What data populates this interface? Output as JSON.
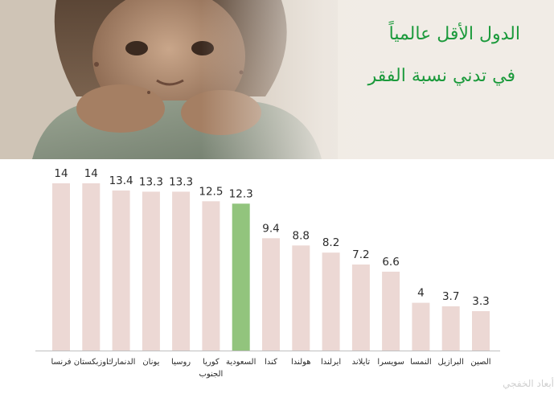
{
  "header": {
    "title_line1": "الدول الأقل عالمياً",
    "title_line2": "في تدني نسبة الفقر"
  },
  "watermark": "أبعاد الخفجي",
  "colors": {
    "bar_default": "#ecd8d4",
    "bar_highlight": "#92c47d",
    "title": "#1c9a3c"
  },
  "chart_data": {
    "type": "bar",
    "title": "الدول الأقل عالمياً في تدني نسبة الفقر",
    "xlabel": "",
    "ylabel": "",
    "categories": [
      "فرنسا",
      "اوزبكستان",
      "الدنمارك",
      "يونان",
      "روسيا",
      "كوريا الجنوب",
      "السعودية",
      "كندا",
      "هولندا",
      "ايرلندا",
      "تايلاند",
      "سويسرا",
      "النمسا",
      "البرازيل",
      "الصين"
    ],
    "values": [
      14,
      14,
      13.4,
      13.3,
      13.3,
      12.5,
      12.3,
      9.4,
      8.8,
      8.2,
      7.2,
      6.6,
      4,
      3.7,
      3.3
    ],
    "value_labels": [
      "14",
      "14",
      "13.4",
      "13.3",
      "13.3",
      "12.5",
      "12.3",
      "9.4",
      "8.8",
      "8.2",
      "7.2",
      "6.6",
      "4",
      "3.7",
      "3.3"
    ],
    "highlight_category": "السعودية",
    "ylim": [
      0,
      14
    ],
    "grid": false,
    "legend": "none"
  }
}
